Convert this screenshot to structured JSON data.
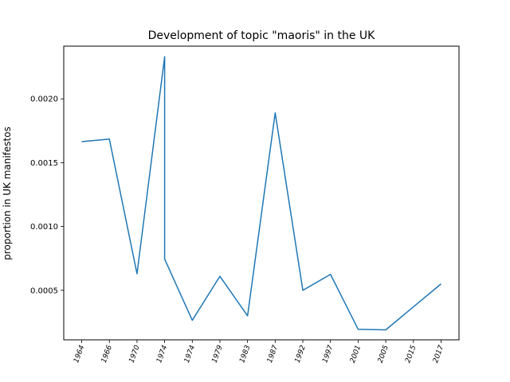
{
  "chart_data": {
    "type": "line",
    "title": "Development of topic \"maoris\" in the UK",
    "xlabel": "",
    "ylabel": "proportion in UK manifestos",
    "categories": [
      "1964",
      "1966",
      "1970",
      "1974",
      "1974",
      "1979",
      "1983",
      "1987",
      "1992",
      "1997",
      "2001",
      "2005",
      "2015",
      "2017"
    ],
    "series": [
      {
        "color": "#1f77b4",
        "points": [
          {
            "x": 0,
            "y": 0.001665
          },
          {
            "x": 1,
            "y": 0.001685
          },
          {
            "x": 2,
            "y": 0.00063
          },
          {
            "x": 3,
            "y": 0.00233
          },
          {
            "x": 3,
            "y": 0.000745
          },
          {
            "x": 4,
            "y": 0.000265
          },
          {
            "x": 5,
            "y": 0.00061
          },
          {
            "x": 6,
            "y": 0.0003
          },
          {
            "x": 7,
            "y": 0.00189
          },
          {
            "x": 8,
            "y": 0.0005
          },
          {
            "x": 9,
            "y": 0.000625
          },
          {
            "x": 10,
            "y": 0.000195
          },
          {
            "x": 11,
            "y": 0.00019
          },
          {
            "x": 13,
            "y": 0.00055
          }
        ]
      }
    ],
    "yticks": [
      "0.0005",
      "0.0010",
      "0.0015",
      "0.0020"
    ],
    "ylim": [
      0.000112,
      0.002413
    ],
    "xlim": [
      -0.65,
      13.65
    ],
    "grid": false
  }
}
